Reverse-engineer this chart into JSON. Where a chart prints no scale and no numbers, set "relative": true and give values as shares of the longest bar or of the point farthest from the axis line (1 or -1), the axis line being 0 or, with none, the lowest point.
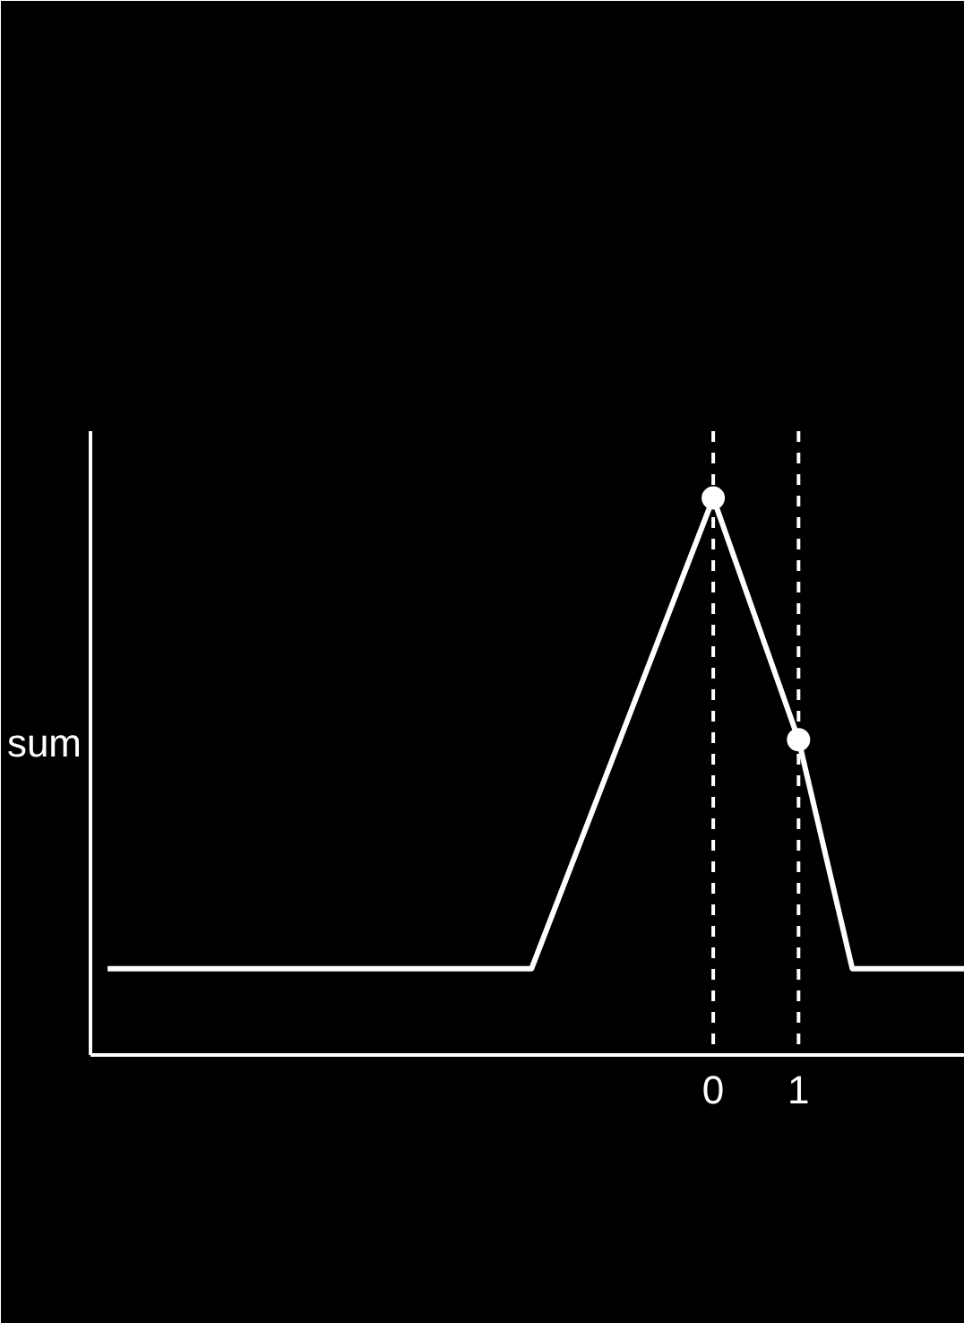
{
  "chart_data": {
    "type": "line",
    "ylabel": "sum",
    "relative": true,
    "xlim": [
      -7.3,
      2.95
    ],
    "xticks": [
      0,
      1
    ],
    "tick_labels": "x",
    "grid": false,
    "series": [
      {
        "color": "#ffffff",
        "marker": "none",
        "line_style": "solid",
        "x": [
          -7.1,
          -2.13,
          0,
          1,
          1.63,
          2.95
        ],
        "values": [
          0.155,
          0.155,
          1,
          0.566,
          0.155,
          0.155
        ]
      },
      {
        "type": "scatter",
        "color": "#ffffff",
        "marker": "circle",
        "x": [
          0,
          1
        ],
        "values": [
          1,
          0.566
        ]
      }
    ],
    "ref_lines": [
      {
        "axis": "x",
        "value": 0,
        "label": null,
        "color": "#ffffff",
        "line_style": "dashed"
      },
      {
        "axis": "x",
        "value": 1,
        "label": null,
        "color": "#ffffff",
        "line_style": "dashed"
      }
    ]
  }
}
